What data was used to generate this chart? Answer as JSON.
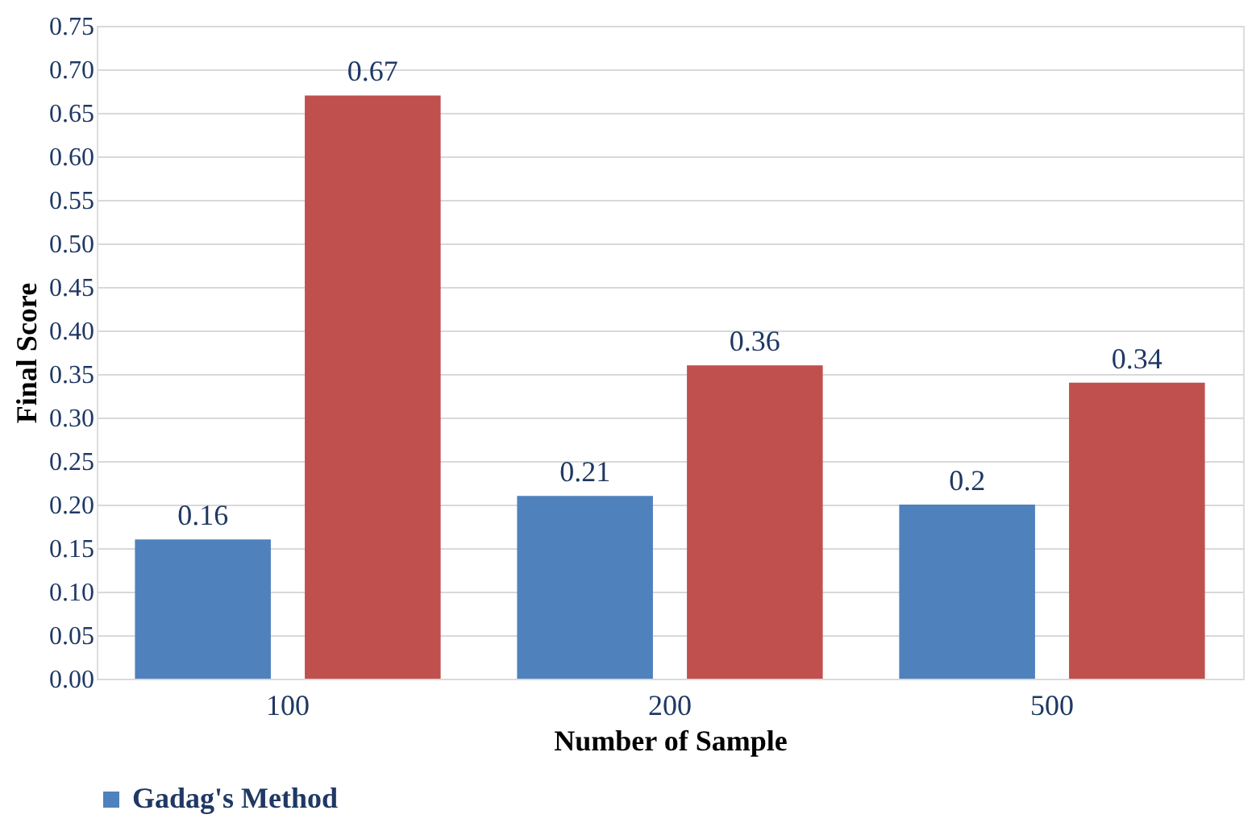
{
  "chart_data": {
    "type": "bar",
    "xlabel": "Number of Sample",
    "ylabel": "Final Score",
    "categories": [
      "100",
      "200",
      "500"
    ],
    "series": [
      {
        "name": "Gadag's Method",
        "color": "#4f81bd",
        "values": [
          0.16,
          0.21,
          0.2
        ]
      },
      {
        "color": "#c0504d",
        "values": [
          0.67,
          0.36,
          0.34
        ]
      }
    ],
    "ylim": [
      0,
      0.75
    ],
    "yticks": [
      {
        "value": 0,
        "label": "0.00"
      },
      {
        "value": 0.05,
        "label": "0.05"
      },
      {
        "value": 0.1,
        "label": "0.10"
      },
      {
        "value": 0.15,
        "label": "0.15"
      },
      {
        "value": 0.2,
        "label": "0.20"
      },
      {
        "value": 0.25,
        "label": "0.25"
      },
      {
        "value": 0.3,
        "label": "0.30"
      },
      {
        "value": 0.35,
        "label": "0.35"
      },
      {
        "value": 0.4,
        "label": "0.40"
      },
      {
        "value": 0.45,
        "label": "0.45"
      },
      {
        "value": 0.5,
        "label": "0.50"
      },
      {
        "value": 0.55,
        "label": "0.55"
      },
      {
        "value": 0.6,
        "label": "0.60"
      },
      {
        "value": 0.65,
        "label": "0.65"
      },
      {
        "value": 0.7,
        "label": "0.70"
      },
      {
        "value": 0.75,
        "label": "0.75"
      }
    ],
    "grid": "y",
    "legend": "bottom",
    "data_labels": true
  }
}
